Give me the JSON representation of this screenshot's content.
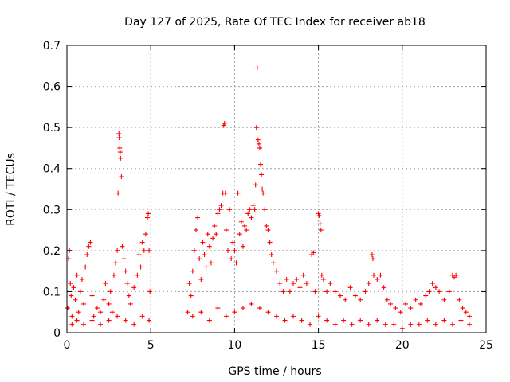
{
  "chart_data": {
    "type": "scatter",
    "title": "Day 127 of 2025, Rate Of TEC Index for receiver ab18",
    "xlabel": "GPS time / hours",
    "ylabel": "ROTI / TECUs",
    "xlim": [
      0,
      25
    ],
    "ylim": [
      0,
      0.7
    ],
    "xticks": [
      "0",
      "5",
      "10",
      "15",
      "20",
      "25"
    ],
    "yticks": [
      "0",
      "0.1",
      "0.2",
      "0.3",
      "0.4",
      "0.5",
      "0.6",
      "0.7"
    ],
    "grid": true,
    "marker": "plus",
    "color": "#ff0000",
    "series": [
      {
        "values": [
          [
            0.05,
            0.06
          ],
          [
            0.1,
            0.18
          ],
          [
            0.15,
            0.2
          ],
          [
            0.2,
            0.12
          ],
          [
            0.25,
            0.09
          ],
          [
            0.3,
            0.04
          ],
          [
            0.4,
            0.11
          ],
          [
            0.5,
            0.08
          ],
          [
            0.6,
            0.14
          ],
          [
            0.7,
            0.05
          ],
          [
            0.8,
            0.1
          ],
          [
            0.9,
            0.13
          ],
          [
            1.0,
            0.07
          ],
          [
            1.1,
            0.16
          ],
          [
            1.2,
            0.19
          ],
          [
            1.3,
            0.21
          ],
          [
            1.4,
            0.22
          ],
          [
            1.5,
            0.09
          ],
          [
            1.6,
            0.04
          ],
          [
            1.8,
            0.06
          ],
          [
            2.0,
            0.05
          ],
          [
            2.2,
            0.08
          ],
          [
            2.3,
            0.12
          ],
          [
            2.5,
            0.07
          ],
          [
            2.6,
            0.1
          ],
          [
            2.7,
            0.05
          ],
          [
            2.8,
            0.14
          ],
          [
            2.9,
            0.17
          ],
          [
            3.0,
            0.2
          ],
          [
            3.05,
            0.34
          ],
          [
            3.1,
            0.485
          ],
          [
            3.12,
            0.475
          ],
          [
            3.15,
            0.45
          ],
          [
            3.18,
            0.44
          ],
          [
            3.2,
            0.425
          ],
          [
            3.25,
            0.38
          ],
          [
            3.3,
            0.21
          ],
          [
            3.4,
            0.18
          ],
          [
            3.5,
            0.15
          ],
          [
            3.6,
            0.12
          ],
          [
            3.7,
            0.09
          ],
          [
            3.8,
            0.07
          ],
          [
            4.0,
            0.11
          ],
          [
            4.2,
            0.14
          ],
          [
            4.3,
            0.19
          ],
          [
            4.4,
            0.16
          ],
          [
            4.5,
            0.22
          ],
          [
            4.6,
            0.2
          ],
          [
            4.7,
            0.24
          ],
          [
            4.8,
            0.28
          ],
          [
            4.85,
            0.29
          ],
          [
            4.9,
            0.2
          ],
          [
            4.95,
            0.1
          ],
          [
            0.3,
            0.02
          ],
          [
            0.6,
            0.03
          ],
          [
            1.0,
            0.02
          ],
          [
            1.5,
            0.03
          ],
          [
            2.0,
            0.02
          ],
          [
            2.5,
            0.03
          ],
          [
            3.0,
            0.04
          ],
          [
            3.5,
            0.03
          ],
          [
            4.0,
            0.02
          ],
          [
            4.5,
            0.04
          ],
          [
            4.9,
            0.03
          ],
          [
            7.2,
            0.05
          ],
          [
            7.3,
            0.12
          ],
          [
            7.4,
            0.09
          ],
          [
            7.5,
            0.15
          ],
          [
            7.6,
            0.2
          ],
          [
            7.7,
            0.25
          ],
          [
            7.8,
            0.28
          ],
          [
            7.9,
            0.18
          ],
          [
            8.0,
            0.13
          ],
          [
            8.1,
            0.22
          ],
          [
            8.2,
            0.19
          ],
          [
            8.3,
            0.16
          ],
          [
            8.4,
            0.24
          ],
          [
            8.5,
            0.21
          ],
          [
            8.6,
            0.17
          ],
          [
            8.7,
            0.23
          ],
          [
            8.8,
            0.26
          ],
          [
            8.9,
            0.24
          ],
          [
            9.0,
            0.29
          ],
          [
            9.1,
            0.3
          ],
          [
            9.2,
            0.31
          ],
          [
            9.3,
            0.34
          ],
          [
            9.35,
            0.505
          ],
          [
            9.4,
            0.51
          ],
          [
            9.45,
            0.34
          ],
          [
            9.5,
            0.25
          ],
          [
            9.6,
            0.2
          ],
          [
            9.7,
            0.3
          ],
          [
            9.8,
            0.18
          ],
          [
            9.9,
            0.22
          ],
          [
            10.0,
            0.2
          ],
          [
            10.1,
            0.17
          ],
          [
            10.2,
            0.34
          ],
          [
            10.3,
            0.24
          ],
          [
            10.4,
            0.27
          ],
          [
            10.5,
            0.21
          ],
          [
            10.6,
            0.26
          ],
          [
            10.7,
            0.25
          ],
          [
            10.8,
            0.29
          ],
          [
            10.9,
            0.3
          ],
          [
            11.0,
            0.28
          ],
          [
            11.1,
            0.31
          ],
          [
            11.2,
            0.3
          ],
          [
            11.25,
            0.36
          ],
          [
            11.3,
            0.5
          ],
          [
            11.35,
            0.645
          ],
          [
            11.4,
            0.47
          ],
          [
            11.45,
            0.46
          ],
          [
            11.5,
            0.45
          ],
          [
            11.55,
            0.41
          ],
          [
            11.6,
            0.385
          ],
          [
            11.65,
            0.35
          ],
          [
            11.7,
            0.34
          ],
          [
            11.8,
            0.3
          ],
          [
            11.9,
            0.26
          ],
          [
            12.0,
            0.25
          ],
          [
            12.1,
            0.22
          ],
          [
            12.2,
            0.19
          ],
          [
            12.3,
            0.17
          ],
          [
            12.5,
            0.15
          ],
          [
            12.7,
            0.12
          ],
          [
            12.9,
            0.1
          ],
          [
            13.1,
            0.13
          ],
          [
            13.3,
            0.1
          ],
          [
            13.5,
            0.12
          ],
          [
            13.7,
            0.13
          ],
          [
            13.9,
            0.11
          ],
          [
            14.1,
            0.14
          ],
          [
            14.3,
            0.12
          ],
          [
            14.6,
            0.19
          ],
          [
            14.7,
            0.195
          ],
          [
            14.8,
            0.1
          ],
          [
            15.0,
            0.29
          ],
          [
            15.05,
            0.285
          ],
          [
            15.1,
            0.265
          ],
          [
            15.15,
            0.25
          ],
          [
            15.2,
            0.14
          ],
          [
            15.3,
            0.13
          ],
          [
            15.5,
            0.1
          ],
          [
            15.7,
            0.12
          ],
          [
            16.0,
            0.1
          ],
          [
            16.3,
            0.09
          ],
          [
            16.6,
            0.08
          ],
          [
            16.9,
            0.11
          ],
          [
            17.2,
            0.09
          ],
          [
            17.5,
            0.08
          ],
          [
            17.8,
            0.1
          ],
          [
            18.0,
            0.12
          ],
          [
            18.2,
            0.19
          ],
          [
            18.25,
            0.18
          ],
          [
            18.3,
            0.14
          ],
          [
            18.5,
            0.13
          ],
          [
            18.7,
            0.14
          ],
          [
            18.9,
            0.11
          ],
          [
            19.1,
            0.08
          ],
          [
            19.3,
            0.07
          ],
          [
            19.6,
            0.06
          ],
          [
            19.9,
            0.05
          ],
          [
            20.2,
            0.07
          ],
          [
            20.5,
            0.06
          ],
          [
            20.8,
            0.08
          ],
          [
            21.1,
            0.07
          ],
          [
            21.4,
            0.09
          ],
          [
            21.6,
            0.1
          ],
          [
            21.8,
            0.12
          ],
          [
            22.0,
            0.11
          ],
          [
            22.2,
            0.1
          ],
          [
            22.5,
            0.08
          ],
          [
            22.8,
            0.1
          ],
          [
            23.0,
            0.14
          ],
          [
            23.1,
            0.135
          ],
          [
            23.2,
            0.14
          ],
          [
            23.4,
            0.08
          ],
          [
            23.6,
            0.06
          ],
          [
            23.8,
            0.05
          ],
          [
            24.0,
            0.04
          ],
          [
            7.5,
            0.04
          ],
          [
            8.0,
            0.05
          ],
          [
            8.5,
            0.03
          ],
          [
            9.0,
            0.06
          ],
          [
            9.5,
            0.04
          ],
          [
            10.0,
            0.05
          ],
          [
            10.5,
            0.06
          ],
          [
            11.0,
            0.07
          ],
          [
            11.5,
            0.06
          ],
          [
            12.0,
            0.05
          ],
          [
            12.5,
            0.04
          ],
          [
            13.0,
            0.03
          ],
          [
            13.5,
            0.04
          ],
          [
            14.0,
            0.03
          ],
          [
            14.5,
            0.02
          ],
          [
            15.0,
            0.04
          ],
          [
            15.5,
            0.03
          ],
          [
            16.0,
            0.02
          ],
          [
            16.5,
            0.03
          ],
          [
            17.0,
            0.02
          ],
          [
            17.5,
            0.03
          ],
          [
            18.0,
            0.02
          ],
          [
            18.5,
            0.03
          ],
          [
            19.0,
            0.02
          ],
          [
            19.5,
            0.02
          ],
          [
            20.0,
            0.01
          ],
          [
            20.5,
            0.02
          ],
          [
            21.0,
            0.02
          ],
          [
            21.5,
            0.03
          ],
          [
            22.0,
            0.02
          ],
          [
            22.5,
            0.03
          ],
          [
            23.0,
            0.02
          ],
          [
            23.5,
            0.03
          ],
          [
            24.0,
            0.02
          ]
        ]
      }
    ]
  }
}
